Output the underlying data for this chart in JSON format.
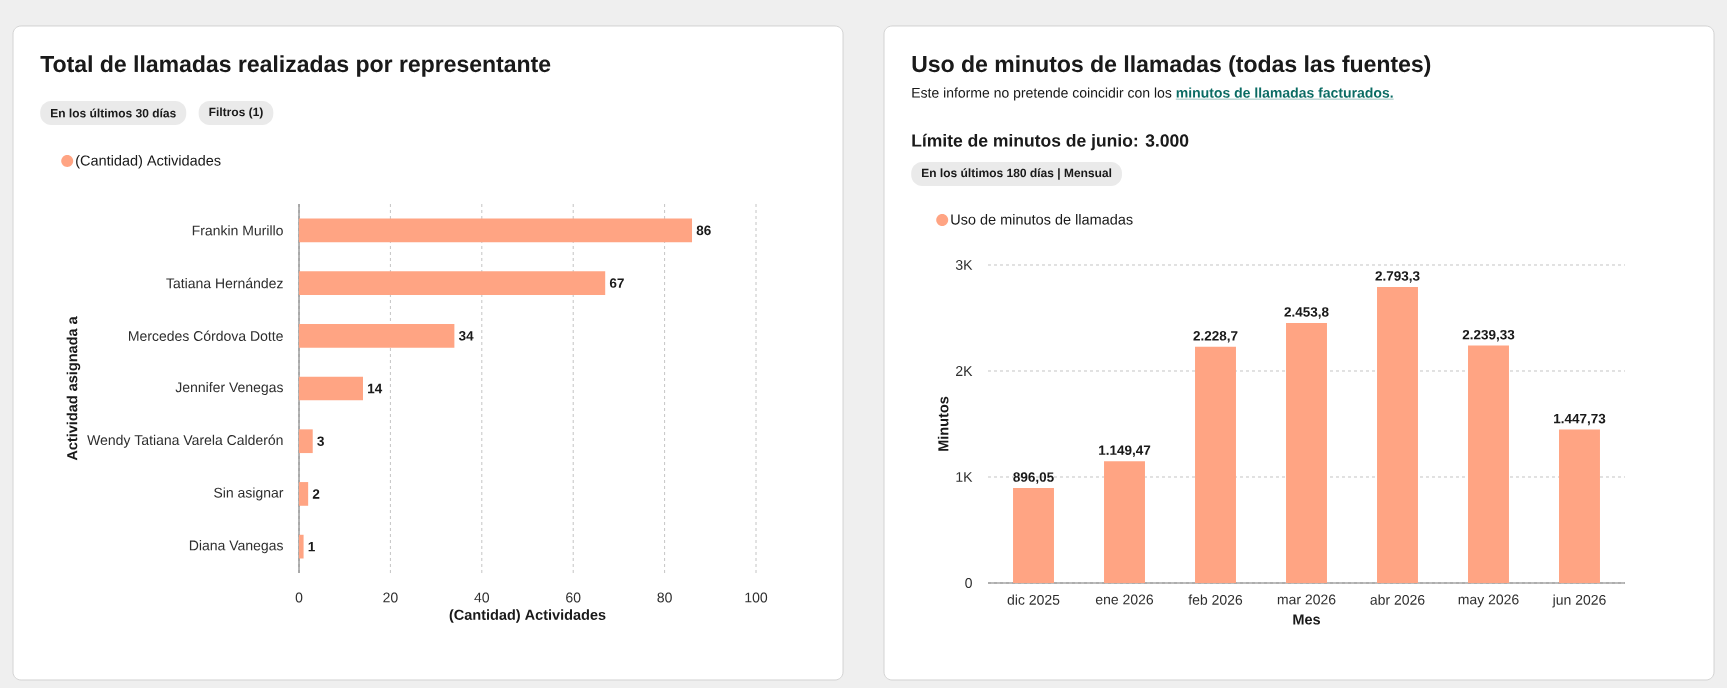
{
  "chart_data": [
    {
      "type": "bar",
      "orientation": "horizontal",
      "title": "Total de llamadas realizadas por representante",
      "annotations": [
        "En los últimos 30 días",
        "Filtros (1)"
      ],
      "categories": [
        "Frankin Murillo",
        "Tatiana Hernández",
        "Mercedes Córdova Dotte",
        "Jennifer Venegas",
        "Wendy Tatiana Varela Calderón",
        "Sin asignar",
        "Diana Vanegas"
      ],
      "series": [
        {
          "name": "(Cantidad) Actividades",
          "color": "#ffa483",
          "values": [
            86,
            67,
            34,
            14,
            3,
            2,
            1
          ]
        }
      ],
      "xlabel": "(Cantidad) Actividades",
      "ylabel": "Actividad asignada a",
      "xlim": [
        0,
        100
      ],
      "xticks": [
        0,
        20,
        40,
        60,
        80,
        100
      ],
      "grid": "x",
      "legend": "top left",
      "data_labels": true
    },
    {
      "type": "bar",
      "title": "Uso de minutos de llamadas (todas las fuentes)",
      "subtitle": "Este informe no pretende coincidir con los **minutos de llamadas facturados.**",
      "annotations": [
        "Límite de minutos de junio: 3.000",
        "En los últimos 180 días | Mensual"
      ],
      "categories": [
        "dic 2025",
        "ene 2026",
        "feb 2026",
        "mar 2026",
        "abr 2026",
        "may 2026",
        "jun 2026"
      ],
      "series": [
        {
          "name": "Uso de minutos de llamadas",
          "color": "#ffa483",
          "values": [
            896.05,
            1149.47,
            2228.7,
            2453.8,
            2793.3,
            2239.33,
            1447.73
          ],
          "value_labels": [
            "896,05",
            "1.149,47",
            "2.228,7",
            "2.453,8",
            "2.793,3",
            "2.239,33",
            "1.447,73"
          ]
        }
      ],
      "xlabel": "Mes",
      "ylabel": "Minutos",
      "ylim": [
        0,
        3000
      ],
      "yticks": [
        0,
        {
          "value": 1000,
          "label": "1K"
        },
        {
          "value": 2000,
          "label": "2K"
        },
        {
          "value": 3000,
          "label": "3K"
        }
      ],
      "grid": "y",
      "legend": "top left"
    }
  ]
}
